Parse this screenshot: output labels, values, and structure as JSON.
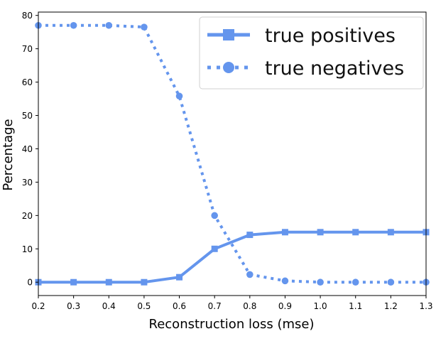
{
  "chart_data": {
    "type": "line",
    "title": "",
    "xlabel": "Reconstruction loss (mse)",
    "ylabel": "Percentage",
    "xlim": [
      0.2,
      1.3
    ],
    "ylim": [
      -4,
      81
    ],
    "x": [
      0.2,
      0.3,
      0.4,
      0.5,
      0.6,
      0.7,
      0.8,
      0.9,
      1.0,
      1.1,
      1.2,
      1.3
    ],
    "xticks": [
      0.2,
      0.3,
      0.4,
      0.5,
      0.6,
      0.7,
      0.8,
      0.9,
      1.0,
      1.1,
      1.2,
      1.3
    ],
    "xtick_labels": [
      "0.2",
      "0.3",
      "0.4",
      "0.5",
      "0.6",
      "0.7",
      "0.8",
      "0.9",
      "1.0",
      "1.1",
      "1.2",
      "1.3"
    ],
    "yticks": [
      0,
      10,
      20,
      30,
      40,
      50,
      60,
      70,
      80
    ],
    "ytick_labels": [
      "0",
      "10",
      "20",
      "30",
      "40",
      "50",
      "60",
      "70",
      "80"
    ],
    "grid": false,
    "legend_position": "top-right",
    "series": [
      {
        "name": "true positives",
        "values": [
          0,
          0,
          0,
          0,
          1.5,
          10,
          14.2,
          15,
          15,
          15,
          15,
          15
        ],
        "style": "solid",
        "marker": "square",
        "color": "#6495ed"
      },
      {
        "name": "true negatives",
        "values": [
          77,
          77,
          77,
          76.5,
          55.8,
          20,
          2.3,
          0.4,
          0,
          0,
          0,
          0
        ],
        "style": "dotted",
        "marker": "circle",
        "color": "#6495ed"
      }
    ]
  }
}
